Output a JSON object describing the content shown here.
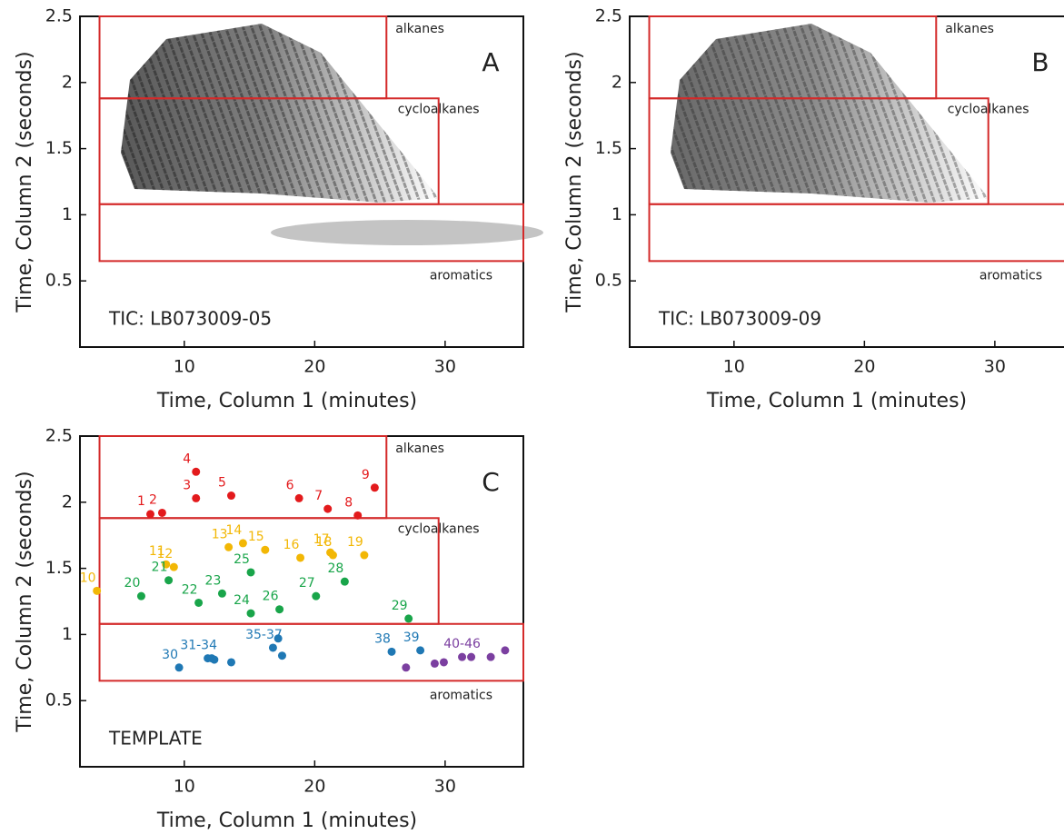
{
  "chart_data": [
    {
      "type": "gc-image",
      "title": "A",
      "annotation": "TIC: LB073009-05",
      "x_label": "Time, Column 1 (minutes)",
      "y_label": "Time, Column 2 (seconds)",
      "xlim": [
        2,
        36
      ],
      "ylim": [
        0,
        2.5
      ],
      "xticks": [
        10,
        20,
        30
      ],
      "yticks": [
        0.5,
        1,
        1.5,
        2,
        2.5
      ],
      "region_color": "#d42a2a",
      "regions": [
        {
          "name": "alkanes",
          "x": [
            3.5,
            25.5
          ],
          "y": [
            1.88,
            2.5
          ]
        },
        {
          "name": "cycloalkanes",
          "x": [
            3.5,
            29.5
          ],
          "y": [
            1.08,
            1.88
          ]
        },
        {
          "name": "aromatics",
          "x": [
            3.5,
            36
          ],
          "y": [
            0.65,
            1.08
          ]
        }
      ]
    },
    {
      "type": "gc-image",
      "title": "B",
      "annotation": "TIC: LB073009-09",
      "x_label": "Time, Column 1 (minutes)",
      "y_label": "Time, Column 2 (seconds)",
      "xlim": [
        2,
        36
      ],
      "ylim": [
        0,
        2.5
      ],
      "xticks": [
        10,
        20,
        30
      ],
      "yticks": [
        0.5,
        1,
        1.5,
        2,
        2.5
      ],
      "region_color": "#d42a2a",
      "regions": [
        {
          "name": "alkanes",
          "x": [
            3.5,
            25.5
          ],
          "y": [
            1.88,
            2.5
          ]
        },
        {
          "name": "cycloalkanes",
          "x": [
            3.5,
            29.5
          ],
          "y": [
            1.08,
            1.88
          ]
        },
        {
          "name": "aromatics",
          "x": [
            3.5,
            36
          ],
          "y": [
            0.65,
            1.08
          ]
        }
      ]
    },
    {
      "type": "scatter",
      "title": "C",
      "annotation": "TEMPLATE",
      "x_label": "Time, Column 1 (minutes)",
      "y_label": "Time, Column 2 (seconds)",
      "xlim": [
        2,
        36
      ],
      "ylim": [
        0,
        2.5
      ],
      "xticks": [
        10,
        20,
        30
      ],
      "yticks": [
        0.5,
        1,
        1.5,
        2,
        2.5
      ],
      "region_color": "#d42a2a",
      "regions": [
        {
          "name": "alkanes",
          "x": [
            3.5,
            25.5
          ],
          "y": [
            1.88,
            2.5
          ]
        },
        {
          "name": "cycloalkanes",
          "x": [
            3.5,
            29.5
          ],
          "y": [
            1.08,
            1.88
          ]
        },
        {
          "name": "aromatics",
          "x": [
            3.5,
            36
          ],
          "y": [
            0.65,
            1.08
          ]
        }
      ],
      "series": [
        {
          "color": "#e31a1c",
          "x": [
            7.4,
            8.3,
            10.9,
            10.9,
            13.6,
            18.8,
            21.0,
            23.3,
            24.6
          ],
          "values": [
            1.91,
            1.92,
            2.03,
            2.23,
            2.05,
            2.03,
            1.95,
            1.9,
            2.11
          ],
          "point_labels": [
            "1",
            "2",
            "3",
            "4",
            "5",
            "6",
            "7",
            "8",
            "9"
          ]
        },
        {
          "color": "#f2b705",
          "x": [
            3.3,
            8.6,
            9.2,
            13.4,
            14.5,
            16.2,
            18.9,
            21.2,
            21.4,
            23.8
          ],
          "values": [
            1.33,
            1.53,
            1.51,
            1.66,
            1.69,
            1.64,
            1.58,
            1.62,
            1.6,
            1.6
          ],
          "point_labels": [
            "10",
            "11",
            "12",
            "13",
            "14",
            "15",
            "16",
            "17",
            "18",
            "19"
          ]
        },
        {
          "color": "#19a54a",
          "x": [
            6.7,
            8.8,
            11.1,
            12.9,
            15.1,
            15.1,
            17.3,
            20.1,
            22.3,
            27.2
          ],
          "values": [
            1.29,
            1.41,
            1.24,
            1.31,
            1.16,
            1.47,
            1.19,
            1.29,
            1.4,
            1.12
          ],
          "point_labels": [
            "20",
            "21",
            "22",
            "23",
            "24",
            "25",
            "26",
            "27",
            "28",
            "29"
          ]
        },
        {
          "color": "#1f78b4",
          "x": [
            9.6,
            11.8,
            12.1,
            12.3,
            13.6,
            16.8,
            17.2,
            17.5,
            25.9,
            28.1
          ],
          "values": [
            0.75,
            0.82,
            0.82,
            0.81,
            0.79,
            0.9,
            0.97,
            0.84,
            0.87,
            0.88
          ],
          "point_labels": [
            "30",
            "31-34",
            null,
            null,
            null,
            "35-37",
            null,
            null,
            "38",
            "39"
          ]
        },
        {
          "color": "#7b3fa0",
          "x": [
            27.0,
            29.2,
            29.9,
            31.3,
            32.0,
            33.5,
            34.6
          ],
          "values": [
            0.75,
            0.78,
            0.79,
            0.83,
            0.83,
            0.83,
            0.88
          ],
          "point_labels": [
            null,
            null,
            null,
            null,
            "40-46",
            null,
            null
          ]
        }
      ]
    }
  ]
}
